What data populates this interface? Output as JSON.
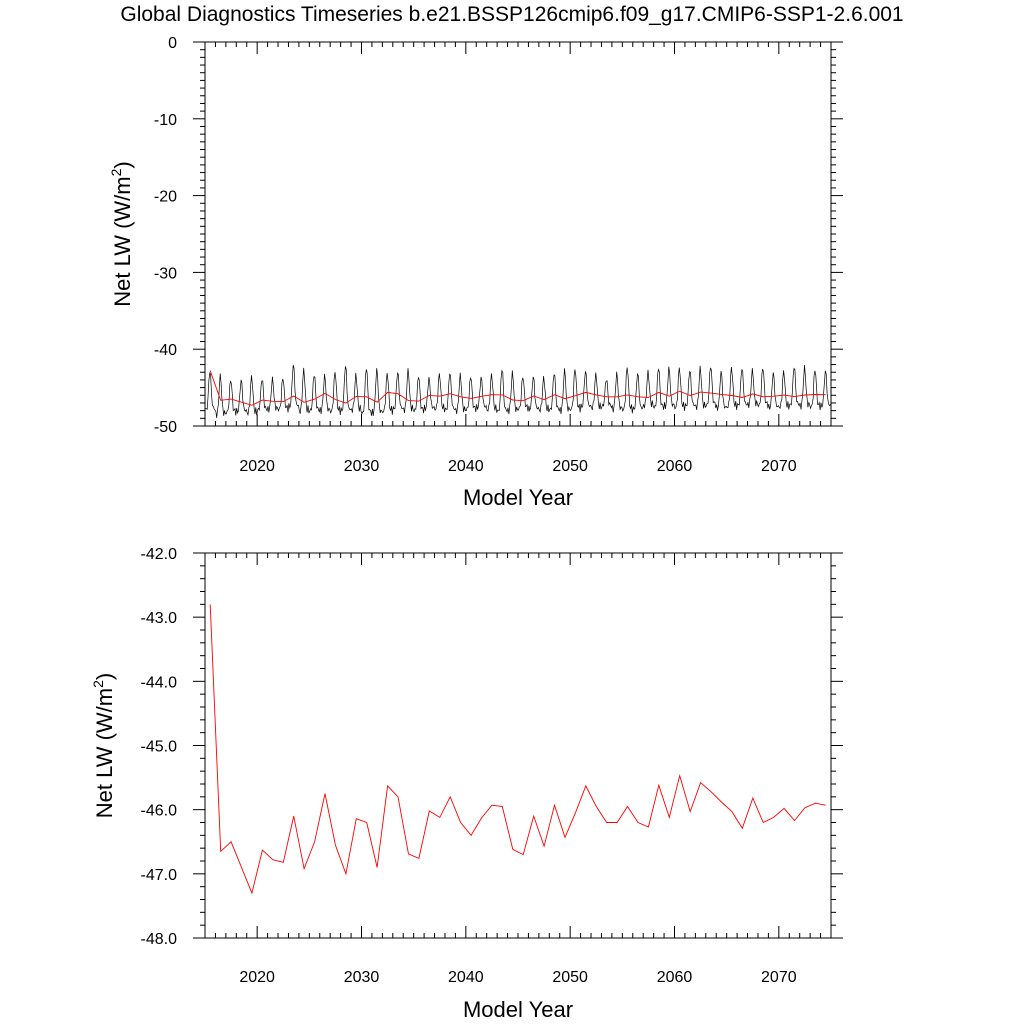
{
  "figure": {
    "title": "Global Diagnostics Timeseries b.e21.BSSP126cmip6.f09_g17.CMIP6-SSP1-2.6.001"
  },
  "colors": {
    "monthly": "#000000",
    "annual": "#ff0000",
    "axis": "#000000"
  },
  "chart_data": [
    {
      "type": "line",
      "name": "monthly-and-annual",
      "xlabel": "Model Year",
      "ylabel": "Net LW (W/m",
      "ylabel_sup": "2",
      "ylabel_close": ")",
      "xlim": [
        2015,
        2075
      ],
      "ylim": [
        -50,
        0
      ],
      "x_ticks": [
        2020,
        2030,
        2040,
        2050,
        2060,
        2070
      ],
      "x_tick_labels": [
        "2020",
        "2030",
        "2040",
        "2050",
        "2060",
        "2070"
      ],
      "y_ticks": [
        0,
        -10,
        -20,
        -30,
        -40,
        -50
      ],
      "y_tick_labels": [
        "0",
        "-10",
        "-20",
        "-30",
        "-40",
        "-50"
      ],
      "series": [
        {
          "name": "monthly",
          "color": "#000000",
          "start_year": 2015.04,
          "step": 0.0833333,
          "cycle_peaks": [
            -42.8,
            -43.5,
            -43.9,
            -44.0,
            -43.6,
            -43.8,
            -43.9,
            -43.7,
            -42.0,
            -42.7,
            -43.2,
            -43.5,
            -42.9,
            -42.1,
            -43.4,
            -42.3,
            -42.7,
            -43.1,
            -42.9,
            -42.8,
            -43.4,
            -43.8,
            -43.2,
            -43.0,
            -43.4,
            -43.5,
            -43.7,
            -43.3,
            -42.5,
            -43.1,
            -43.5,
            -43.6,
            -43.7,
            -43.0,
            -42.8,
            -42.5,
            -42.8,
            -43.3,
            -43.8,
            -43.2,
            -42.3,
            -43.1,
            -43.0,
            -42.3,
            -42.5,
            -42.4,
            -42.7,
            -42.5,
            -42.1,
            -43.0,
            -42.4,
            -42.4,
            -42.8,
            -42.3,
            -43.1,
            -42.9,
            -42.2,
            -42.4,
            -42.6,
            -42.8
          ],
          "cycle_troughs": [
            -48.0,
            -48.6,
            -48.3,
            -48.2,
            -48.4,
            -48.0,
            -47.9,
            -47.9,
            -47.6,
            -48.2,
            -48.1,
            -48.1,
            -48.2,
            -48.1,
            -48.0,
            -48.5,
            -48.4,
            -48.2,
            -47.9,
            -48.0,
            -48.1,
            -47.8,
            -47.9,
            -48.0,
            -48.1,
            -47.9,
            -47.7,
            -48.0,
            -48.2,
            -48.1,
            -47.8,
            -47.9,
            -48.0,
            -48.0,
            -48.1,
            -47.9,
            -47.6,
            -47.7,
            -47.5,
            -47.9,
            -48.0,
            -47.9,
            -47.4,
            -47.7,
            -47.5,
            -47.7,
            -47.5,
            -47.6,
            -47.4,
            -47.8,
            -47.6,
            -47.4,
            -47.3,
            -47.4,
            -47.7,
            -47.6,
            -47.4,
            -47.5,
            -47.6,
            -47.5
          ]
        },
        {
          "name": "annual",
          "color": "#ff0000",
          "x": [
            2015.5,
            2016.5,
            2017.5,
            2018.5,
            2019.5,
            2020.5,
            2021.5,
            2022.5,
            2023.5,
            2024.5,
            2025.5,
            2026.5,
            2027.5,
            2028.5,
            2029.5,
            2030.5,
            2031.5,
            2032.5,
            2033.5,
            2034.5,
            2035.5,
            2036.5,
            2037.5,
            2038.5,
            2039.5,
            2040.5,
            2041.5,
            2042.5,
            2043.5,
            2044.5,
            2045.5,
            2046.5,
            2047.5,
            2048.5,
            2049.5,
            2050.5,
            2051.5,
            2052.5,
            2053.5,
            2054.5,
            2055.5,
            2056.5,
            2057.5,
            2058.5,
            2059.5,
            2060.5,
            2061.5,
            2062.5,
            2063.5,
            2064.5,
            2065.5,
            2066.5,
            2067.5,
            2068.5,
            2069.5,
            2070.5,
            2071.5,
            2072.5,
            2073.5,
            2074.5
          ],
          "values": [
            -42.8,
            -46.65,
            -46.5,
            -46.9,
            -47.3,
            -46.63,
            -46.78,
            -46.82,
            -46.1,
            -46.92,
            -46.5,
            -45.75,
            -46.55,
            -47.0,
            -46.14,
            -46.2,
            -46.9,
            -45.63,
            -45.8,
            -46.69,
            -46.76,
            -46.02,
            -46.12,
            -45.8,
            -46.2,
            -46.4,
            -46.13,
            -45.93,
            -45.95,
            -46.62,
            -46.7,
            -46.1,
            -46.57,
            -45.93,
            -46.43,
            -46.05,
            -45.63,
            -45.95,
            -46.2,
            -46.2,
            -45.95,
            -46.2,
            -46.27,
            -45.62,
            -46.12,
            -45.47,
            -46.03,
            -45.58,
            -45.72,
            -45.88,
            -46.03,
            -46.29,
            -45.82,
            -46.2,
            -46.12,
            -45.98,
            -46.17,
            -45.97,
            -45.9,
            -45.93
          ]
        }
      ]
    },
    {
      "type": "line",
      "name": "annual-only",
      "xlabel": "Model Year",
      "ylabel": "Net LW (W/m",
      "ylabel_sup": "2",
      "ylabel_close": ")",
      "xlim": [
        2015,
        2075
      ],
      "ylim": [
        -48,
        -42
      ],
      "x_ticks": [
        2020,
        2030,
        2040,
        2050,
        2060,
        2070
      ],
      "x_tick_labels": [
        "2020",
        "2030",
        "2040",
        "2050",
        "2060",
        "2070"
      ],
      "y_ticks": [
        -42,
        -43,
        -44,
        -45,
        -46,
        -47,
        -48
      ],
      "y_tick_labels": [
        "-42.0",
        "-43.0",
        "-44.0",
        "-45.0",
        "-46.0",
        "-47.0",
        "-48.0"
      ],
      "series": [
        {
          "name": "annual",
          "color": "#ff0000",
          "x": [
            2015.5,
            2016.5,
            2017.5,
            2018.5,
            2019.5,
            2020.5,
            2021.5,
            2022.5,
            2023.5,
            2024.5,
            2025.5,
            2026.5,
            2027.5,
            2028.5,
            2029.5,
            2030.5,
            2031.5,
            2032.5,
            2033.5,
            2034.5,
            2035.5,
            2036.5,
            2037.5,
            2038.5,
            2039.5,
            2040.5,
            2041.5,
            2042.5,
            2043.5,
            2044.5,
            2045.5,
            2046.5,
            2047.5,
            2048.5,
            2049.5,
            2050.5,
            2051.5,
            2052.5,
            2053.5,
            2054.5,
            2055.5,
            2056.5,
            2057.5,
            2058.5,
            2059.5,
            2060.5,
            2061.5,
            2062.5,
            2063.5,
            2064.5,
            2065.5,
            2066.5,
            2067.5,
            2068.5,
            2069.5,
            2070.5,
            2071.5,
            2072.5,
            2073.5,
            2074.5
          ],
          "values": [
            -42.8,
            -46.65,
            -46.5,
            -46.9,
            -47.3,
            -46.63,
            -46.78,
            -46.82,
            -46.1,
            -46.92,
            -46.5,
            -45.75,
            -46.55,
            -47.0,
            -46.14,
            -46.2,
            -46.9,
            -45.63,
            -45.8,
            -46.69,
            -46.76,
            -46.02,
            -46.12,
            -45.8,
            -46.2,
            -46.4,
            -46.13,
            -45.93,
            -45.95,
            -46.62,
            -46.7,
            -46.1,
            -46.57,
            -45.93,
            -46.43,
            -46.05,
            -45.63,
            -45.95,
            -46.2,
            -46.2,
            -45.95,
            -46.2,
            -46.27,
            -45.62,
            -46.12,
            -45.47,
            -46.03,
            -45.58,
            -45.72,
            -45.88,
            -46.03,
            -46.29,
            -45.82,
            -46.2,
            -46.12,
            -45.98,
            -46.17,
            -45.97,
            -45.9,
            -45.93
          ]
        }
      ]
    }
  ]
}
